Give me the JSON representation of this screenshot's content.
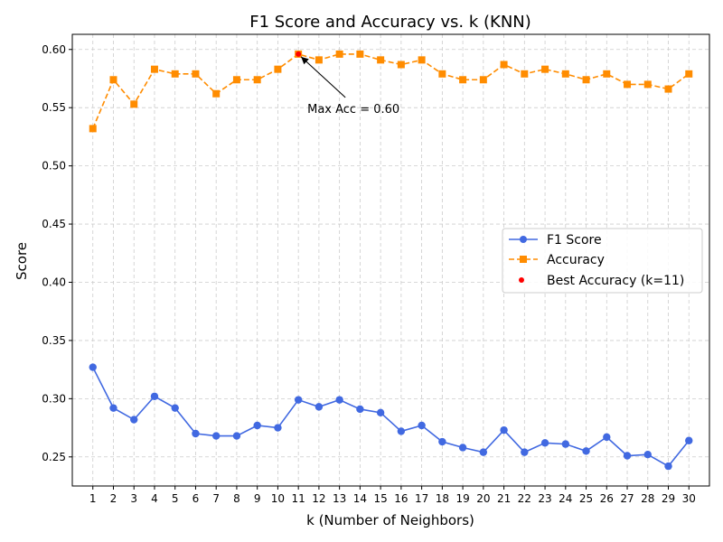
{
  "chart_data": {
    "type": "line",
    "title": "F1 Score and Accuracy vs. k (KNN)",
    "xlabel": "k (Number of Neighbors)",
    "ylabel": "Score",
    "x": [
      1,
      2,
      3,
      4,
      5,
      6,
      7,
      8,
      9,
      10,
      11,
      12,
      13,
      14,
      15,
      16,
      17,
      18,
      19,
      20,
      21,
      22,
      23,
      24,
      25,
      26,
      27,
      28,
      29,
      30
    ],
    "ylim": [
      0.225,
      0.613
    ],
    "yticks": [
      0.25,
      0.3,
      0.35,
      0.4,
      0.45,
      0.5,
      0.55,
      0.6
    ],
    "ytick_labels": [
      "0.25",
      "0.30",
      "0.35",
      "0.40",
      "0.45",
      "0.50",
      "0.55",
      "0.60"
    ],
    "grid": true,
    "legend_position": "center-right",
    "series": [
      {
        "name": "F1 Score",
        "color": "#4169e1",
        "marker": "circle",
        "linestyle": "solid",
        "values": [
          0.327,
          0.292,
          0.282,
          0.302,
          0.292,
          0.27,
          0.268,
          0.268,
          0.277,
          0.275,
          0.299,
          0.293,
          0.299,
          0.291,
          0.288,
          0.272,
          0.277,
          0.263,
          0.258,
          0.254,
          0.273,
          0.254,
          0.262,
          0.261,
          0.255,
          0.267,
          0.251,
          0.252,
          0.242,
          0.264
        ]
      },
      {
        "name": "Accuracy",
        "color": "#ff8c00",
        "marker": "square",
        "linestyle": "dashed",
        "values": [
          0.532,
          0.574,
          0.553,
          0.583,
          0.579,
          0.579,
          0.562,
          0.574,
          0.574,
          0.583,
          0.596,
          0.591,
          0.596,
          0.596,
          0.591,
          0.587,
          0.591,
          0.579,
          0.574,
          0.574,
          0.587,
          0.579,
          0.583,
          0.579,
          0.574,
          0.579,
          0.57,
          0.57,
          0.566,
          0.579
        ]
      }
    ],
    "highlight": {
      "name": "Best Accuracy (k=11)",
      "color": "#ff0000",
      "x": 11,
      "y": 0.596
    },
    "annotation": {
      "text": "Max Acc = 0.60",
      "x": 11,
      "y": 0.596
    }
  }
}
